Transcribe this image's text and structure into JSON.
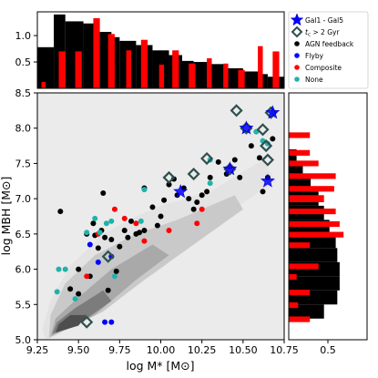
{
  "chart_data": {
    "type": "scatter",
    "xlabel": "log M* [M⊙]",
    "ylabel": "log MBH [M⊙]",
    "xlim": [
      9.25,
      10.75
    ],
    "ylim": [
      5.0,
      8.5
    ],
    "xticks": [
      "9.25",
      "9.50",
      "9.75",
      "10.00",
      "10.25",
      "10.50",
      "10.75"
    ],
    "yticks": [
      "5.0",
      "5.5",
      "6.0",
      "6.5",
      "7.0",
      "7.5",
      "8.0",
      "8.5"
    ],
    "top_hist": {
      "yticks": [
        "0.5",
        "1.0"
      ],
      "ylim": [
        0,
        1.45
      ],
      "black": {
        "edges": [
          9.25,
          9.35,
          9.42,
          9.53,
          9.6,
          9.7,
          9.75,
          9.85,
          9.95,
          10.05,
          10.13,
          10.2,
          10.3,
          10.4,
          10.5,
          10.6,
          10.65,
          10.75
        ],
        "values": [
          0.78,
          1.4,
          1.27,
          1.23,
          1.07,
          0.97,
          0.9,
          0.82,
          0.72,
          0.63,
          0.52,
          0.5,
          0.46,
          0.38,
          0.32,
          0.27,
          0.22
        ]
      },
      "red": {
        "edges": [
          9.275,
          9.3,
          9.38,
          9.42,
          9.48,
          9.52,
          9.59,
          9.63,
          9.68,
          9.72,
          9.79,
          9.82,
          9.88,
          9.92,
          9.99,
          10.02,
          10.07,
          10.11,
          10.17,
          10.21,
          10.28,
          10.31,
          10.38,
          10.41,
          10.47,
          10.51,
          10.59,
          10.62,
          10.68,
          10.72
        ],
        "values": [
          0.12,
          0,
          0.7,
          0,
          0.7,
          0,
          1.33,
          0,
          1.03,
          0,
          0.72,
          0,
          0.92,
          0,
          0.45,
          0,
          0.72,
          0,
          0.47,
          0,
          0.57,
          0,
          0.47,
          0,
          0.35,
          0,
          0.8,
          0,
          0.7
        ]
      }
    },
    "right_hist": {
      "xticks": [
        "0.5"
      ],
      "xlim": [
        0,
        1.0
      ],
      "black": {
        "edges": [
          5.3,
          5.5,
          5.7,
          5.9,
          6.1,
          6.3,
          6.5,
          6.7,
          6.9,
          7.1,
          7.3,
          7.5,
          7.7
        ],
        "values": [
          0.45,
          0.62,
          0.65,
          0.65,
          0.62,
          0.6,
          0.52,
          0.45,
          0.38,
          0.28,
          0.18,
          0.1
        ]
      },
      "red": {
        "bars": [
          {
            "y": [
              7.86,
              7.94
            ],
            "value": 0.27
          },
          {
            "y": [
              7.61,
              7.69
            ],
            "value": 0.27
          },
          {
            "y": [
              7.46,
              7.54
            ],
            "value": 0.38
          },
          {
            "y": [
              7.28,
              7.36
            ],
            "value": 0.6
          },
          {
            "y": [
              7.1,
              7.18
            ],
            "value": 0.58
          },
          {
            "y": [
              6.95,
              7.05
            ],
            "value": 0.45
          },
          {
            "y": [
              6.78,
              6.86
            ],
            "value": 0.6
          },
          {
            "y": [
              6.6,
              6.68
            ],
            "value": 0.65
          },
          {
            "y": [
              6.45,
              6.53
            ],
            "value": 0.7
          },
          {
            "y": [
              6.3,
              6.38
            ],
            "value": 0.27
          },
          {
            "y": [
              6.0,
              6.08
            ],
            "value": 0.38
          },
          {
            "y": [
              5.85,
              5.93
            ],
            "value": 0.1
          },
          {
            "y": [
              5.63,
              5.71
            ],
            "value": 0.27
          },
          {
            "y": [
              5.45,
              5.53
            ],
            "value": 0.12
          },
          {
            "y": [
              5.25,
              5.33
            ],
            "value": 0.27
          }
        ]
      }
    },
    "contours": [
      {
        "level": 1,
        "color": "#e3e3e3",
        "points": [
          [
            9.3,
            5.0
          ],
          [
            9.75,
            5.6
          ],
          [
            10.0,
            6.0
          ],
          [
            10.35,
            6.7
          ],
          [
            10.6,
            7.1
          ],
          [
            10.7,
            7.25
          ],
          [
            10.62,
            7.55
          ],
          [
            10.3,
            7.1
          ],
          [
            10.0,
            6.9
          ],
          [
            9.85,
            6.75
          ],
          [
            9.65,
            6.5
          ],
          [
            9.45,
            6.05
          ],
          [
            9.33,
            5.55
          ],
          [
            9.28,
            5.15
          ]
        ]
      },
      {
        "level": 2,
        "color": "#c9c9c9",
        "points": [
          [
            9.32,
            5.02
          ],
          [
            9.65,
            5.4
          ],
          [
            9.9,
            5.85
          ],
          [
            10.2,
            6.35
          ],
          [
            10.5,
            6.85
          ],
          [
            10.45,
            7.05
          ],
          [
            10.1,
            6.7
          ],
          [
            9.85,
            6.5
          ],
          [
            9.6,
            6.2
          ],
          [
            9.42,
            5.8
          ],
          [
            9.33,
            5.35
          ]
        ]
      },
      {
        "level": 3,
        "color": "#a9a9a9",
        "points": [
          [
            9.33,
            5.05
          ],
          [
            9.6,
            5.35
          ],
          [
            9.85,
            5.85
          ],
          [
            10.05,
            6.2
          ],
          [
            9.95,
            6.35
          ],
          [
            9.7,
            6.0
          ],
          [
            9.5,
            5.6
          ],
          [
            9.36,
            5.3
          ]
        ]
      },
      {
        "level": 4,
        "color": "#7c7c7c",
        "points": [
          [
            9.34,
            5.08
          ],
          [
            9.55,
            5.3
          ],
          [
            9.7,
            5.55
          ],
          [
            9.65,
            5.7
          ],
          [
            9.48,
            5.45
          ],
          [
            9.37,
            5.25
          ]
        ]
      },
      {
        "level": 5,
        "color": "#4e4e4e",
        "points": [
          [
            9.36,
            5.1
          ],
          [
            9.5,
            5.2
          ],
          [
            9.55,
            5.35
          ],
          [
            9.45,
            5.35
          ],
          [
            9.38,
            5.22
          ]
        ]
      }
    ],
    "series": [
      {
        "name": "AGN feedback",
        "color": "#000000",
        "points": [
          [
            9.39,
            6.82
          ],
          [
            9.45,
            5.72
          ],
          [
            9.5,
            5.65
          ],
          [
            9.5,
            6.0
          ],
          [
            9.55,
            6.5
          ],
          [
            9.57,
            5.9
          ],
          [
            9.59,
            6.65
          ],
          [
            9.6,
            6.48
          ],
          [
            9.62,
            6.3
          ],
          [
            9.64,
            6.55
          ],
          [
            9.65,
            7.08
          ],
          [
            9.66,
            6.45
          ],
          [
            9.68,
            5.7
          ],
          [
            9.7,
            6.42
          ],
          [
            9.73,
            5.97
          ],
          [
            9.75,
            6.32
          ],
          [
            9.78,
            6.55
          ],
          [
            9.8,
            6.45
          ],
          [
            9.82,
            6.68
          ],
          [
            9.85,
            6.5
          ],
          [
            9.87,
            6.52
          ],
          [
            9.9,
            6.55
          ],
          [
            9.9,
            7.15
          ],
          [
            9.95,
            6.88
          ],
          [
            9.98,
            6.62
          ],
          [
            10.0,
            6.75
          ],
          [
            10.02,
            6.98
          ],
          [
            10.05,
            7.2
          ],
          [
            10.08,
            7.28
          ],
          [
            10.1,
            7.05
          ],
          [
            10.14,
            7.15
          ],
          [
            10.17,
            7.0
          ],
          [
            10.2,
            6.85
          ],
          [
            10.22,
            6.95
          ],
          [
            10.25,
            7.05
          ],
          [
            10.28,
            7.1
          ],
          [
            10.3,
            7.3
          ],
          [
            10.35,
            7.52
          ],
          [
            10.4,
            7.35
          ],
          [
            10.45,
            7.55
          ],
          [
            10.48,
            7.3
          ],
          [
            10.55,
            7.75
          ],
          [
            10.6,
            7.58
          ],
          [
            10.62,
            7.1
          ],
          [
            10.65,
            7.3
          ],
          [
            10.68,
            7.85
          ]
        ]
      },
      {
        "name": "Flyby",
        "color": "#0000ff",
        "points": [
          [
            9.57,
            6.35
          ],
          [
            9.62,
            6.1
          ],
          [
            9.66,
            5.25
          ],
          [
            9.7,
            5.25
          ],
          [
            9.7,
            6.18
          ]
        ]
      },
      {
        "name": "Composite",
        "color": "#ff0000",
        "points": [
          [
            9.55,
            5.9
          ],
          [
            9.62,
            6.5
          ],
          [
            9.72,
            6.85
          ],
          [
            9.78,
            6.72
          ],
          [
            9.85,
            6.65
          ],
          [
            9.9,
            6.4
          ],
          [
            10.05,
            6.55
          ],
          [
            10.22,
            6.65
          ],
          [
            10.25,
            6.85
          ],
          [
            10.42,
            7.45
          ]
        ]
      },
      {
        "name": "None",
        "color": "#20b2aa",
        "points": [
          [
            9.37,
            5.68
          ],
          [
            9.38,
            6.0
          ],
          [
            9.42,
            6.0
          ],
          [
            9.48,
            5.58
          ],
          [
            9.55,
            6.52
          ],
          [
            9.6,
            6.72
          ],
          [
            9.63,
            6.52
          ],
          [
            9.67,
            6.65
          ],
          [
            9.7,
            6.68
          ],
          [
            9.72,
            5.9
          ],
          [
            9.88,
            6.68
          ],
          [
            9.9,
            7.13
          ],
          [
            10.3,
            7.55
          ],
          [
            10.3,
            7.22
          ],
          [
            10.58,
            7.95
          ],
          [
            10.62,
            7.82
          ],
          [
            10.65,
            7.78
          ],
          [
            10.68,
            8.22
          ]
        ]
      }
    ],
    "diamonds": [
      [
        9.55,
        5.25
      ],
      [
        9.68,
        6.18
      ],
      [
        10.05,
        7.3
      ],
      [
        10.2,
        7.35
      ],
      [
        10.28,
        7.57
      ],
      [
        10.42,
        7.42
      ],
      [
        10.46,
        8.25
      ],
      [
        10.52,
        8.0
      ],
      [
        10.62,
        7.98
      ],
      [
        10.64,
        7.75
      ],
      [
        10.65,
        7.55
      ],
      [
        10.67,
        8.22
      ]
    ],
    "stars": [
      [
        10.12,
        7.1
      ],
      [
        10.42,
        7.42
      ],
      [
        10.52,
        8.0
      ],
      [
        10.65,
        7.25
      ],
      [
        10.68,
        8.22
      ]
    ],
    "legend": {
      "position": "top-right",
      "entries": [
        {
          "label": "Gal1 - Gal5",
          "marker": "star",
          "color": "#0000ff"
        },
        {
          "label": "$t_c$ > 2 Gyr",
          "marker": "diamond",
          "color": "#2f4f4f"
        },
        {
          "label": "AGN feedback",
          "marker": "circle",
          "color": "#000000"
        },
        {
          "label": "Flyby",
          "marker": "circle",
          "color": "#0000ff"
        },
        {
          "label": "Composite",
          "marker": "circle",
          "color": "#ff0000"
        },
        {
          "label": "None",
          "marker": "circle",
          "color": "#20b2aa"
        }
      ]
    },
    "colors": {
      "background": "#ebebeb",
      "black_hist": "#000000",
      "red_hist": "#ff0000"
    }
  }
}
